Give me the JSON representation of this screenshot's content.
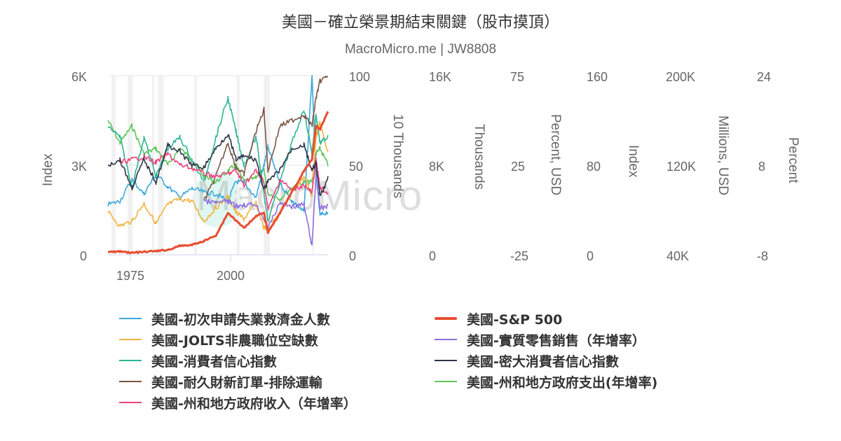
{
  "chart_data": {
    "type": "line",
    "title": "美國－確立榮景期結束關鍵（股市摸頂）",
    "subtitle": "MacroMicro.me | JW8808",
    "xlabel": "",
    "x_ticks": [
      "1975",
      "2000"
    ],
    "x_range": [
      1969,
      2024
    ],
    "grid": true,
    "legend_position": "bottom",
    "recession_bands": [
      [
        1969.9,
        1970.9
      ],
      [
        1973.9,
        1975.2
      ],
      [
        1980.0,
        1980.5
      ],
      [
        1981.5,
        1982.9
      ],
      [
        1990.6,
        1991.2
      ],
      [
        2001.2,
        2001.9
      ],
      [
        2007.9,
        2009.5
      ],
      [
        2020.1,
        2020.4
      ]
    ],
    "axes": [
      {
        "id": "y0",
        "side": "left",
        "label": "Index",
        "ticks": [
          "0",
          "3K",
          "6K"
        ],
        "range": [
          0,
          6000
        ]
      },
      {
        "id": "y1",
        "side": "right",
        "label": "10 Thousands",
        "ticks": [
          "0",
          "50",
          "100"
        ],
        "range": [
          0,
          100
        ]
      },
      {
        "id": "y2",
        "side": "right",
        "label": "Thousands",
        "ticks": [
          "0",
          "8K",
          "16K"
        ],
        "range": [
          0,
          16000
        ]
      },
      {
        "id": "y3",
        "side": "right",
        "label": "Percent, USD",
        "ticks": [
          "-25",
          "25",
          "75"
        ],
        "range": [
          -25,
          75
        ]
      },
      {
        "id": "y4",
        "side": "right",
        "label": "Index",
        "ticks": [
          "0",
          "80",
          "160"
        ],
        "range": [
          0,
          160
        ]
      },
      {
        "id": "y5",
        "side": "right",
        "label": "Millions, USD",
        "ticks": [
          "40K",
          "120K",
          "200K"
        ],
        "range": [
          40000,
          200000
        ]
      },
      {
        "id": "y6",
        "side": "right",
        "label": "Percent",
        "ticks": [
          "-8",
          "8",
          "24"
        ],
        "range": [
          -8,
          24
        ]
      }
    ],
    "x": [
      1969,
      1972,
      1975,
      1978,
      1981,
      1984,
      1987,
      1990,
      1993,
      1996,
      1999,
      2001,
      2003,
      2006,
      2008,
      2009,
      2012,
      2015,
      2018,
      2020,
      2021,
      2022,
      2024
    ],
    "series": [
      {
        "name": "美國-初次申請失業救濟金人數",
        "color": "#3ba8dc",
        "axis": "y1",
        "values": [
          28,
          30,
          42,
          34,
          45,
          38,
          32,
          37,
          35,
          34,
          30,
          41,
          40,
          32,
          50,
          60,
          40,
          30,
          24,
          100,
          45,
          22,
          24
        ]
      },
      {
        "name": "美國-JOLTS非農職位空缺數",
        "color": "#f3b33d",
        "axis": "y2",
        "values": [
          3800,
          2600,
          3000,
          4600,
          2800,
          4500,
          5000,
          4800,
          3000,
          4200,
          5200,
          3800,
          3200,
          4600,
          2400,
          2300,
          3800,
          5500,
          7000,
          5400,
          10500,
          11800,
          9000
        ]
      },
      {
        "name": "美國-消費者信心指數",
        "color": "#2bb594",
        "axis": "y4",
        "values": [
          115,
          105,
          60,
          105,
          70,
          95,
          105,
          85,
          65,
          105,
          140,
          110,
          80,
          105,
          55,
          30,
          65,
          100,
          130,
          90,
          125,
          100,
          105
        ]
      },
      {
        "name": "美國-耐久財新訂單-排除運輸",
        "color": "#7a5545",
        "axis": "y5",
        "values": [
          null,
          null,
          null,
          null,
          null,
          null,
          null,
          null,
          88000,
          110000,
          140000,
          118000,
          112000,
          150000,
          170000,
          115000,
          155000,
          160000,
          165000,
          155000,
          180000,
          195000,
          200000
        ]
      },
      {
        "name": "美國-州和地方政府收入（年增率）",
        "color": "#e9447d",
        "axis": "y6",
        "values": [
          null,
          8.5,
          9,
          9.5,
          8.5,
          10,
          8,
          7.5,
          6.5,
          6,
          6.5,
          7,
          4.5,
          7,
          5,
          0,
          5.5,
          3.5,
          4.5,
          3,
          9,
          4,
          3
        ]
      },
      {
        "name": "美國-S&P 500",
        "color": "#e84d30",
        "axis": "y0",
        "values": [
          95,
          110,
          70,
          95,
          125,
          165,
          300,
          330,
          460,
          650,
          1400,
          1150,
          900,
          1300,
          1400,
          750,
          1400,
          2100,
          2800,
          3200,
          4300,
          4200,
          4800
        ]
      },
      {
        "name": "美國-實質零售銷售（年增率）",
        "color": "#8e6ee0",
        "axis": "y3",
        "values": [
          null,
          null,
          null,
          null,
          null,
          null,
          null,
          null,
          5,
          4,
          5,
          2,
          3,
          3,
          -5,
          -10,
          4,
          2,
          3,
          -20,
          20,
          1,
          2
        ]
      },
      {
        "name": "美國-密大消費者信心指數",
        "color": "#2d3347",
        "axis": "y4",
        "values": [
          80,
          85,
          60,
          85,
          65,
          98,
          92,
          80,
          78,
          95,
          108,
          85,
          88,
          85,
          58,
          65,
          76,
          95,
          98,
          75,
          82,
          52,
          68
        ]
      },
      {
        "name": "美國-州和地方政府支出(年增率)",
        "color": "#5fc558",
        "axis": "y6",
        "values": [
          16,
          12,
          15,
          10,
          11,
          8,
          11,
          9,
          6,
          5,
          7,
          8,
          5,
          6,
          7,
          3,
          2,
          4,
          5,
          5,
          10,
          11,
          8
        ]
      }
    ]
  },
  "legend": {
    "left": [
      {
        "label": "美國-初次申請失業救濟金人數",
        "color": "#3ba8dc"
      },
      {
        "label": "美國-JOLTS非農職位空缺數",
        "color": "#f3b33d"
      },
      {
        "label": "美國-消費者信心指數",
        "color": "#2bb594"
      },
      {
        "label": "美國-耐久財新訂單-排除運輸",
        "color": "#7a5545"
      },
      {
        "label": "美國-州和地方政府收入（年增率）",
        "color": "#e9447d"
      }
    ],
    "right": [
      {
        "label": "美國-S&P 500",
        "color": "#e84d30"
      },
      {
        "label": "美國-實質零售銷售（年增率）",
        "color": "#8e6ee0"
      },
      {
        "label": "美國-密大消費者信心指數",
        "color": "#2d3347"
      },
      {
        "label": "美國-州和地方政府支出(年增率)",
        "color": "#5fc558"
      }
    ]
  },
  "watermark": "MacroMicro"
}
